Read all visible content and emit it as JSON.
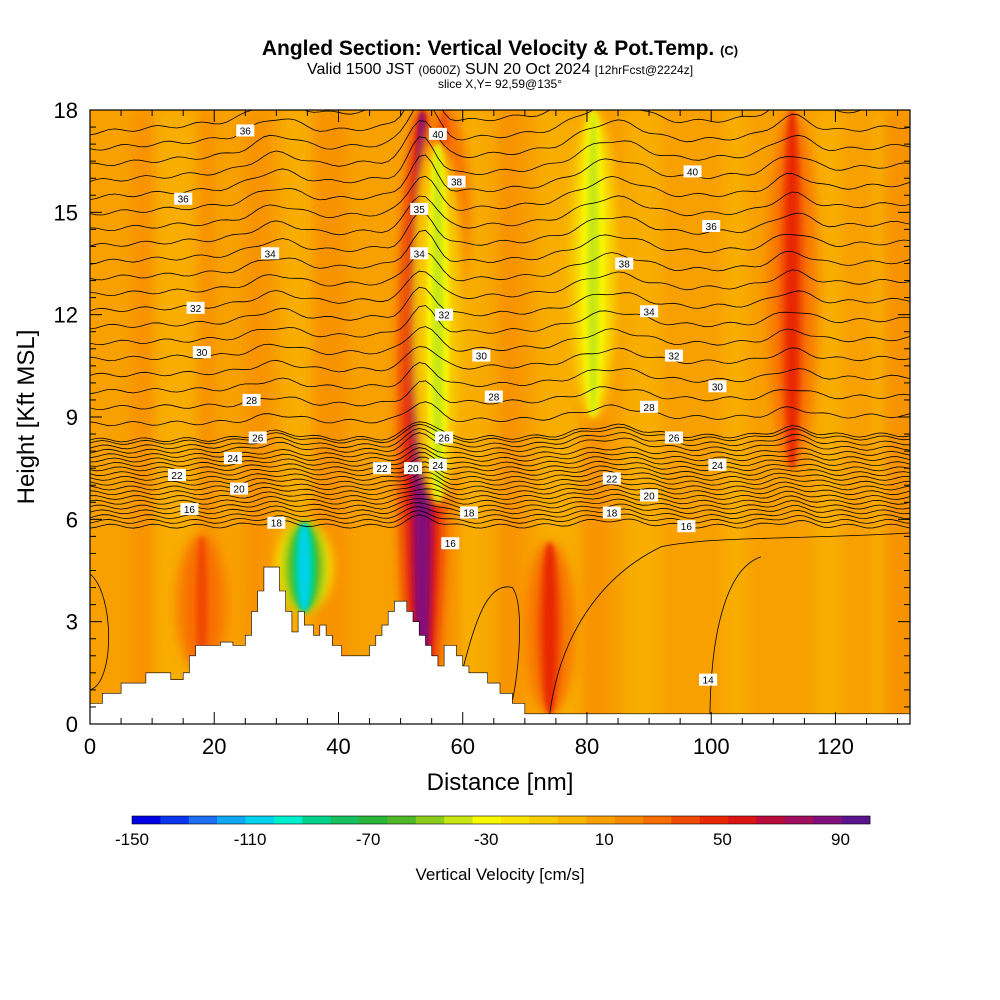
{
  "header": {
    "title_main": "Angled Section: Vertical Velocity & Pot.Temp.",
    "title_suffix": "(C)",
    "valid_prefix": "Valid 1500 JST",
    "valid_zulu": "(0600Z)",
    "valid_date": "SUN 20 Oct 2024",
    "valid_fcst": "[12hrFcst@2224z]",
    "slice": "slice X,Y= 92,59@135°"
  },
  "chart_data": {
    "type": "heatmap",
    "xlabel": "Distance [nm]",
    "ylabel": "Height [Kft MSL]",
    "xlim": [
      0,
      132
    ],
    "ylim": [
      0,
      18
    ],
    "x_ticks": [
      "0",
      "20",
      "40",
      "60",
      "80",
      "100",
      "120"
    ],
    "y_ticks": [
      "0",
      "3",
      "6",
      "9",
      "12",
      "15",
      "18"
    ],
    "colorbar": {
      "label": "Vertical Velocity [cm/s]",
      "range": [
        -150,
        100
      ],
      "tick_labels": [
        "-150",
        "-110",
        "-70",
        "-30",
        "10",
        "50",
        "90"
      ],
      "colors": [
        "#0000e6",
        "#0a35ee",
        "#1e6df5",
        "#10a8f5",
        "#00d2f0",
        "#00f0d0",
        "#00d28c",
        "#18c060",
        "#2ab53a",
        "#50b828",
        "#8ccc1c",
        "#c8e614",
        "#f8f800",
        "#f8e400",
        "#f8cc00",
        "#f8b800",
        "#f8a000",
        "#f88a00",
        "#f86e00",
        "#f04a00",
        "#e82800",
        "#dc1414",
        "#b80c3c",
        "#a0105c",
        "#80107c",
        "#5a148c"
      ]
    },
    "background_value": 10,
    "updrafts": [
      {
        "x": 53.5,
        "y0": 0,
        "y1": 18,
        "value": 90
      },
      {
        "x": 74,
        "y0": 0.3,
        "y1": 5.3,
        "value": 50
      },
      {
        "x": 113,
        "y0": 7.5,
        "y1": 18,
        "value": 45
      },
      {
        "x": 18,
        "y0": 1.5,
        "y1": 5.5,
        "value": 35
      },
      {
        "x": 57,
        "y0": 12,
        "y1": 18,
        "value": 35
      }
    ],
    "downdrafts": [
      {
        "x": 34.5,
        "y0": 3.3,
        "y1": 5.9,
        "value": -110
      },
      {
        "x": 56,
        "y0": 6.5,
        "y1": 17,
        "value": -35
      },
      {
        "x": 81,
        "y0": 9,
        "y1": 18,
        "value": -40
      }
    ],
    "theta_contour_labels": [
      {
        "text": "36",
        "x": 25,
        "y": 17.4
      },
      {
        "text": "36",
        "x": 15,
        "y": 15.4
      },
      {
        "text": "34",
        "x": 29,
        "y": 13.8
      },
      {
        "text": "32",
        "x": 17,
        "y": 12.2
      },
      {
        "text": "30",
        "x": 18,
        "y": 10.9
      },
      {
        "text": "28",
        "x": 26,
        "y": 9.5
      },
      {
        "text": "26",
        "x": 27,
        "y": 8.4
      },
      {
        "text": "24",
        "x": 23,
        "y": 7.8
      },
      {
        "text": "22",
        "x": 14,
        "y": 7.3
      },
      {
        "text": "20",
        "x": 24,
        "y": 6.9
      },
      {
        "text": "16",
        "x": 16,
        "y": 6.3
      },
      {
        "text": "18",
        "x": 30,
        "y": 5.9
      },
      {
        "text": "40",
        "x": 56,
        "y": 17.3
      },
      {
        "text": "38",
        "x": 59,
        "y": 15.9
      },
      {
        "text": "35",
        "x": 53,
        "y": 15.1
      },
      {
        "text": "34",
        "x": 53,
        "y": 13.8
      },
      {
        "text": "32",
        "x": 57,
        "y": 12
      },
      {
        "text": "30",
        "x": 63,
        "y": 10.8
      },
      {
        "text": "28",
        "x": 65,
        "y": 9.6
      },
      {
        "text": "26",
        "x": 57,
        "y": 8.4
      },
      {
        "text": "24",
        "x": 56,
        "y": 7.6
      },
      {
        "text": "22",
        "x": 47,
        "y": 7.5
      },
      {
        "text": "20",
        "x": 52,
        "y": 7.5
      },
      {
        "text": "18",
        "x": 61,
        "y": 6.2
      },
      {
        "text": "16",
        "x": 58,
        "y": 5.3
      },
      {
        "text": "40",
        "x": 97,
        "y": 16.2
      },
      {
        "text": "36",
        "x": 100,
        "y": 14.6
      },
      {
        "text": "38",
        "x": 86,
        "y": 13.5
      },
      {
        "text": "34",
        "x": 90,
        "y": 12.1
      },
      {
        "text": "32",
        "x": 94,
        "y": 10.8
      },
      {
        "text": "30",
        "x": 101,
        "y": 9.9
      },
      {
        "text": "28",
        "x": 90,
        "y": 9.3
      },
      {
        "text": "26",
        "x": 94,
        "y": 8.4
      },
      {
        "text": "24",
        "x": 101,
        "y": 7.6
      },
      {
        "text": "22",
        "x": 84,
        "y": 7.2
      },
      {
        "text": "20",
        "x": 90,
        "y": 6.7
      },
      {
        "text": "18",
        "x": 84,
        "y": 6.2
      },
      {
        "text": "16",
        "x": 96,
        "y": 5.8
      },
      {
        "text": "14",
        "x": 99.5,
        "y": 1.3
      }
    ],
    "terrain_profile": [
      [
        0,
        0.6
      ],
      [
        2,
        0.6
      ],
      [
        2,
        0.9
      ],
      [
        5,
        0.9
      ],
      [
        5,
        1.2
      ],
      [
        9,
        1.2
      ],
      [
        9,
        1.5
      ],
      [
        13,
        1.5
      ],
      [
        13,
        1.3
      ],
      [
        15,
        1.3
      ],
      [
        15,
        1.5
      ],
      [
        16,
        1.5
      ],
      [
        16,
        2
      ],
      [
        17,
        2
      ],
      [
        17,
        2.3
      ],
      [
        21,
        2.3
      ],
      [
        21,
        2.4
      ],
      [
        23,
        2.4
      ],
      [
        23,
        2.3
      ],
      [
        25,
        2.3
      ],
      [
        25,
        2.6
      ],
      [
        26,
        2.6
      ],
      [
        26,
        3.3
      ],
      [
        27,
        3.3
      ],
      [
        27,
        3.9
      ],
      [
        28,
        3.9
      ],
      [
        28,
        4.6
      ],
      [
        30.5,
        4.6
      ],
      [
        30.5,
        3.9
      ],
      [
        31.5,
        3.9
      ],
      [
        31.5,
        3.3
      ],
      [
        32.5,
        3.3
      ],
      [
        32.5,
        2.7
      ],
      [
        33.5,
        2.7
      ],
      [
        33.5,
        3.3
      ],
      [
        34.5,
        3.3
      ],
      [
        34.5,
        2.9
      ],
      [
        36,
        2.9
      ],
      [
        36,
        2.6
      ],
      [
        37,
        2.6
      ],
      [
        37,
        2.9
      ],
      [
        38,
        2.9
      ],
      [
        38,
        2.6
      ],
      [
        39,
        2.6
      ],
      [
        39,
        2.3
      ],
      [
        40.5,
        2.3
      ],
      [
        40.5,
        2
      ],
      [
        45,
        2
      ],
      [
        45,
        2.3
      ],
      [
        46,
        2.3
      ],
      [
        46,
        2.6
      ],
      [
        47,
        2.6
      ],
      [
        47,
        2.9
      ],
      [
        48,
        2.9
      ],
      [
        48,
        3.3
      ],
      [
        49,
        3.3
      ],
      [
        49,
        3.6
      ],
      [
        51,
        3.6
      ],
      [
        51,
        3.3
      ],
      [
        52,
        3.3
      ],
      [
        52,
        3
      ],
      [
        53,
        3
      ],
      [
        53,
        2.6
      ],
      [
        54,
        2.6
      ],
      [
        54,
        2.3
      ],
      [
        55,
        2.3
      ],
      [
        55,
        2
      ],
      [
        56,
        2
      ],
      [
        56,
        1.7
      ],
      [
        57,
        1.7
      ],
      [
        57,
        2.3
      ],
      [
        59,
        2.3
      ],
      [
        59,
        2
      ],
      [
        60,
        2
      ],
      [
        60,
        1.7
      ],
      [
        61,
        1.7
      ],
      [
        61,
        1.5
      ],
      [
        64,
        1.5
      ],
      [
        64,
        1.2
      ],
      [
        66,
        1.2
      ],
      [
        66,
        0.9
      ],
      [
        68,
        0.9
      ],
      [
        68,
        0.6
      ],
      [
        70,
        0.6
      ],
      [
        70,
        0.3
      ],
      [
        132,
        0.3
      ],
      [
        132,
        0
      ],
      [
        0,
        0
      ]
    ]
  }
}
